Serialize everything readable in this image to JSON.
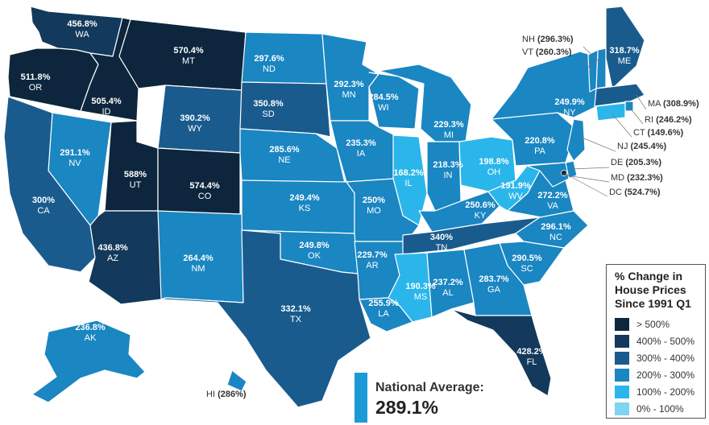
{
  "colors": {
    "over_500": "#0d263d",
    "400_500": "#13395c",
    "300_400": "#1a5b8e",
    "200_300": "#1a86c2",
    "100_200": "#2ab6ea",
    "0_100": "#7fd3f3",
    "lines": "#ffffff",
    "nat_bar": "#1a9ad6"
  },
  "states": [
    {
      "abbr": "WA",
      "value": "456.8%"
    },
    {
      "abbr": "OR",
      "value": "511.8%"
    },
    {
      "abbr": "ID",
      "value": "505.4%"
    },
    {
      "abbr": "MT",
      "value": "570.4%"
    },
    {
      "abbr": "WY",
      "value": "390.2%"
    },
    {
      "abbr": "ND",
      "value": "297.6%"
    },
    {
      "abbr": "SD",
      "value": "350.8%"
    },
    {
      "abbr": "MN",
      "value": "292.3%"
    },
    {
      "abbr": "WI",
      "value": "284.5%"
    },
    {
      "abbr": "MI",
      "value": "229.3%"
    },
    {
      "abbr": "NV",
      "value": "291.1%"
    },
    {
      "abbr": "CA",
      "value": "300%"
    },
    {
      "abbr": "UT",
      "value": "588%"
    },
    {
      "abbr": "CO",
      "value": "574.4%"
    },
    {
      "abbr": "NE",
      "value": "285.6%"
    },
    {
      "abbr": "IA",
      "value": "235.3%"
    },
    {
      "abbr": "IL",
      "value": "168.2%"
    },
    {
      "abbr": "IN",
      "value": "218.3%"
    },
    {
      "abbr": "OH",
      "value": "198.8%"
    },
    {
      "abbr": "PA",
      "value": "220.8%"
    },
    {
      "abbr": "NY",
      "value": "249.9%"
    },
    {
      "abbr": "ME",
      "value": "318.7%"
    },
    {
      "abbr": "KS",
      "value": "249.4%"
    },
    {
      "abbr": "MO",
      "value": "250%"
    },
    {
      "abbr": "KY",
      "value": "250.6%"
    },
    {
      "abbr": "WV",
      "value": "191.9%"
    },
    {
      "abbr": "VA",
      "value": "272.2%"
    },
    {
      "abbr": "AZ",
      "value": "436.8%"
    },
    {
      "abbr": "NM",
      "value": "264.4%"
    },
    {
      "abbr": "OK",
      "value": "249.8%"
    },
    {
      "abbr": "AR",
      "value": "229.7%"
    },
    {
      "abbr": "TN",
      "value": "340%"
    },
    {
      "abbr": "NC",
      "value": "296.1%"
    },
    {
      "abbr": "SC",
      "value": "290.5%"
    },
    {
      "abbr": "MS",
      "value": "190.3%"
    },
    {
      "abbr": "AL",
      "value": "237.2%"
    },
    {
      "abbr": "GA",
      "value": "283.7%"
    },
    {
      "abbr": "TX",
      "value": "332.1%"
    },
    {
      "abbr": "LA",
      "value": "255.9%"
    },
    {
      "abbr": "FL",
      "value": "428.2%"
    },
    {
      "abbr": "AK",
      "value": "236.8%"
    }
  ],
  "callouts": [
    {
      "abbr": "NH",
      "value": "(296.3%)"
    },
    {
      "abbr": "VT",
      "value": "(260.3%)"
    },
    {
      "abbr": "MA",
      "value": "(308.9%)"
    },
    {
      "abbr": "RI",
      "value": "(246.2%)"
    },
    {
      "abbr": "CT",
      "value": "(149.6%)"
    },
    {
      "abbr": "NJ",
      "value": "(245.4%)"
    },
    {
      "abbr": "DE",
      "value": "(205.3%)"
    },
    {
      "abbr": "MD",
      "value": "(232.3%)"
    },
    {
      "abbr": "DC",
      "value": "(524.7%)"
    },
    {
      "abbr": "HI",
      "value": "(286%)"
    }
  ],
  "legend": {
    "title": "% Change in House Prices Since 1991 Q1",
    "items": [
      {
        "label": "> 500%",
        "color": "#0d263d"
      },
      {
        "label": "400% - 500%",
        "color": "#13395c"
      },
      {
        "label": "300% - 400%",
        "color": "#1a5b8e"
      },
      {
        "label": "200% - 300%",
        "color": "#1a86c2"
      },
      {
        "label": "100% - 200%",
        "color": "#2ab6ea"
      },
      {
        "label": "0% - 100%",
        "color": "#7fd3f3"
      }
    ]
  },
  "national_average": {
    "label": "National Average:",
    "value": "289.1%"
  }
}
